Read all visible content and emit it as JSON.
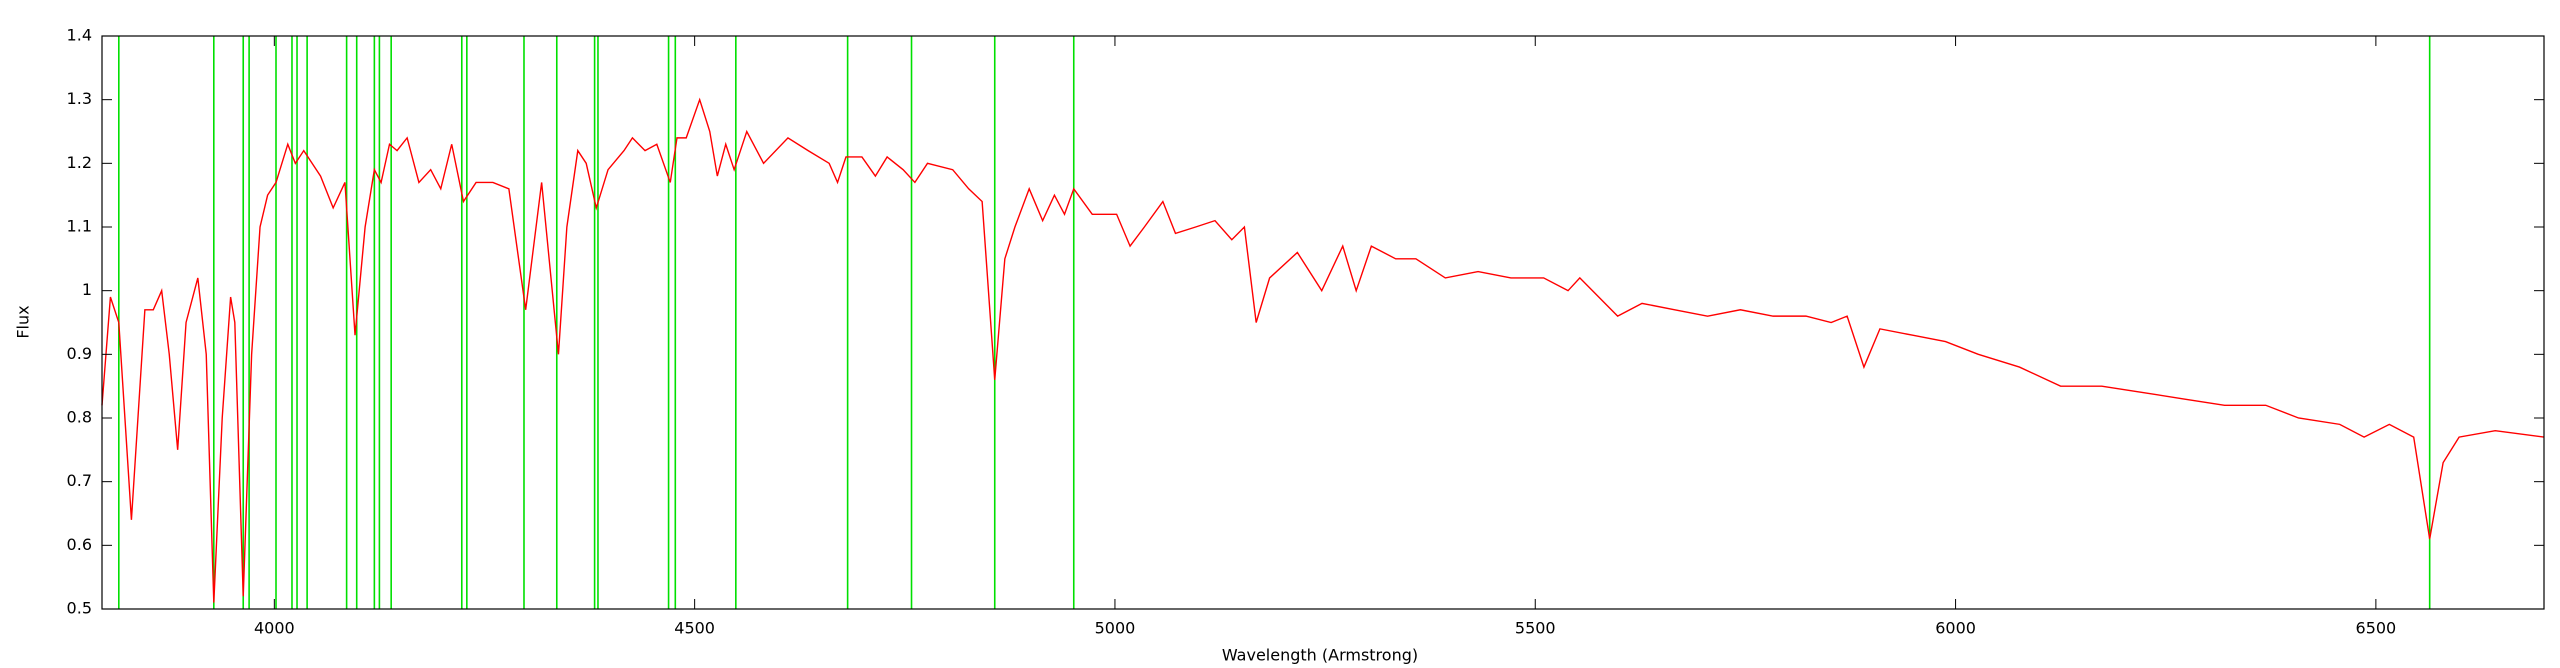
{
  "chart_data": {
    "type": "line",
    "x_label": "Wavelength (Armstrong)",
    "y_label": "Flux",
    "color": "#ff0000",
    "reference_color": "#00e000",
    "xlim": [
      3795,
      6700
    ],
    "ylim": [
      0.5,
      1.4
    ],
    "xticks": [
      4000,
      4500,
      5000,
      5500,
      6000,
      6500
    ],
    "yticks": [
      0.5,
      0.6,
      0.7,
      0.8,
      0.9,
      1,
      1.1,
      1.2,
      1.3,
      1.4
    ],
    "grid": false,
    "reference_lines": [
      3815,
      3928,
      3963,
      3970,
      4002,
      4021,
      4027,
      4039,
      4086,
      4098,
      4119,
      4125,
      4139,
      4223,
      4229,
      4297,
      4336,
      4381,
      4385,
      4469,
      4477,
      4549,
      4682,
      4758,
      4857,
      4951,
      6564
    ],
    "x": [
      3795,
      3805,
      3815,
      3830,
      3846,
      3856,
      3866,
      3875,
      3885,
      3895,
      3909,
      3919,
      3928,
      3938,
      3948,
      3953,
      3963,
      3973,
      3983,
      3992,
      4002,
      4016,
      4025,
      4035,
      4055,
      4070,
      4084,
      4096,
      4108,
      4119,
      4127,
      4137,
      4146,
      4158,
      4172,
      4186,
      4198,
      4211,
      4225,
      4240,
      4260,
      4279,
      4299,
      4318,
      4338,
      4348,
      4361,
      4371,
      4383,
      4397,
      4416,
      4426,
      4441,
      4455,
      4471,
      4479,
      4490,
      4506,
      4518,
      4527,
      4537,
      4547,
      4562,
      4582,
      4611,
      4635,
      4660,
      4670,
      4680,
      4699,
      4715,
      4729,
      4748,
      4762,
      4777,
      4807,
      4826,
      4842,
      4857,
      4869,
      4881,
      4898,
      4914,
      4928,
      4940,
      4951,
      4973,
      5002,
      5018,
      5035,
      5057,
      5072,
      5096,
      5119,
      5139,
      5154,
      5168,
      5184,
      5217,
      5246,
      5271,
      5287,
      5305,
      5334,
      5358,
      5393,
      5432,
      5471,
      5510,
      5539,
      5553,
      5598,
      5627,
      5666,
      5705,
      5744,
      5783,
      5822,
      5852,
      5871,
      5891,
      5910,
      5949,
      5988,
      6027,
      6076,
      6125,
      6174,
      6223,
      6271,
      6320,
      6369,
      6408,
      6457,
      6486,
      6516,
      6545,
      6564,
      6580,
      6599,
      6642,
      6700
    ],
    "values": [
      0.82,
      0.99,
      0.95,
      0.64,
      0.97,
      0.97,
      1.0,
      0.9,
      0.75,
      0.95,
      1.02,
      0.9,
      0.51,
      0.8,
      0.99,
      0.95,
      0.52,
      0.9,
      1.1,
      1.15,
      1.17,
      1.23,
      1.2,
      1.22,
      1.18,
      1.13,
      1.17,
      0.93,
      1.1,
      1.19,
      1.17,
      1.23,
      1.22,
      1.24,
      1.17,
      1.19,
      1.16,
      1.23,
      1.14,
      1.17,
      1.17,
      1.16,
      0.97,
      1.17,
      0.9,
      1.1,
      1.22,
      1.2,
      1.13,
      1.19,
      1.22,
      1.24,
      1.22,
      1.23,
      1.17,
      1.24,
      1.24,
      1.3,
      1.25,
      1.18,
      1.23,
      1.19,
      1.25,
      1.2,
      1.24,
      1.22,
      1.2,
      1.17,
      1.21,
      1.21,
      1.18,
      1.21,
      1.19,
      1.17,
      1.2,
      1.19,
      1.16,
      1.14,
      0.86,
      1.05,
      1.1,
      1.16,
      1.11,
      1.15,
      1.12,
      1.16,
      1.12,
      1.12,
      1.07,
      1.1,
      1.14,
      1.09,
      1.1,
      1.11,
      1.08,
      1.1,
      0.95,
      1.02,
      1.06,
      1.0,
      1.07,
      1.0,
      1.07,
      1.05,
      1.05,
      1.02,
      1.03,
      1.02,
      1.02,
      1.0,
      1.02,
      0.96,
      0.98,
      0.97,
      0.96,
      0.97,
      0.96,
      0.96,
      0.95,
      0.96,
      0.88,
      0.94,
      0.93,
      0.92,
      0.9,
      0.88,
      0.85,
      0.85,
      0.84,
      0.83,
      0.82,
      0.82,
      0.8,
      0.79,
      0.77,
      0.79,
      0.77,
      0.61,
      0.73,
      0.77,
      0.78,
      0.77
    ]
  }
}
